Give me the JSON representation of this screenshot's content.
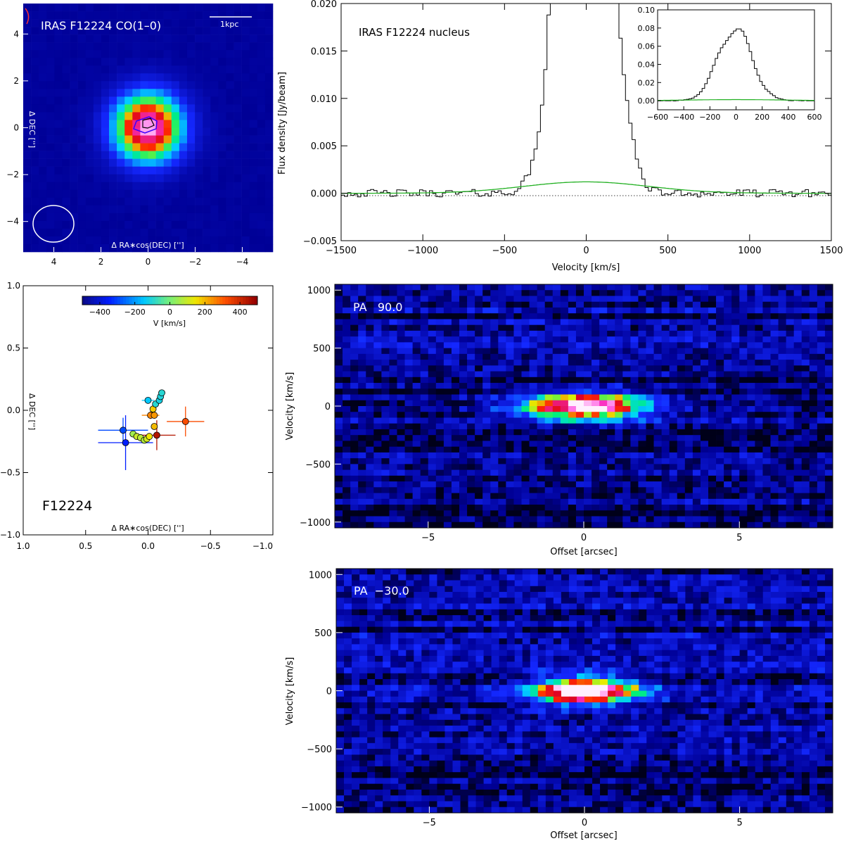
{
  "colors": {
    "spectrum_line": "#000000",
    "fit_line": "#22b022",
    "beam_ellipse": "#ffffff",
    "contour": "#3c00ff",
    "background": "#ffffff"
  },
  "chart_data": [
    {
      "id": "co_map",
      "type": "heatmap",
      "title": "IRAS F12224 CO(1–0)",
      "scale_bar_label": "1kpc",
      "xlabel": "Δ RA∗cos(DEC) ['']",
      "ylabel": "Δ DEC ['']",
      "xlim": [
        5.3,
        -5.3
      ],
      "ylim": [
        -5.3,
        5.3
      ],
      "xticks": [
        4,
        2,
        0,
        -2,
        -4
      ],
      "yticks": [
        -4,
        -2,
        0,
        2,
        4
      ],
      "peak_position": [
        0,
        0
      ],
      "beam": {
        "center": [
          3.9,
          -3.9
        ],
        "major": 1.6,
        "minor": 1.45,
        "shape": "ellipse"
      }
    },
    {
      "id": "spectrum",
      "type": "line",
      "label": "IRAS F12224 nucleus",
      "xlabel": "Velocity [km/s]",
      "ylabel": "Flux density [Jy/beam]",
      "xlim": [
        -1500,
        1500
      ],
      "ylim": [
        -0.005,
        0.02
      ],
      "xticks": [
        -1500,
        -1000,
        -500,
        0,
        500,
        1000,
        1500
      ],
      "yticks": [
        -0.005,
        0.0,
        0.005,
        0.01,
        0.015,
        0.02
      ],
      "ytick_labels": [
        "−0.005",
        "0.000",
        "0.005",
        "0.010",
        "0.015",
        "0.020"
      ],
      "series": [
        {
          "name": "observed",
          "style": "step",
          "peak": 0.08,
          "center": -20,
          "fwhm": 300,
          "noise": 0.0004
        },
        {
          "name": "broad_component_fit",
          "style": "line",
          "amplitude": 0.0012,
          "center": 0,
          "fwhm": 900
        }
      ],
      "zero_line": "dotted",
      "inset": {
        "xlim": [
          -600,
          600
        ],
        "ylim": [
          -0.01,
          0.1
        ],
        "xticks": [
          -600,
          -400,
          -200,
          0,
          200,
          400,
          600
        ],
        "xtick_labels": [
          "−600",
          "−400",
          "−200",
          "0",
          "200",
          "400",
          "600"
        ],
        "yticks": [
          0.0,
          0.02,
          0.04,
          0.06,
          0.08,
          0.1
        ],
        "ytick_labels": [
          "0.00",
          "0.02",
          "0.04",
          "0.06",
          "0.08",
          "0.10"
        ]
      }
    },
    {
      "id": "centroids",
      "type": "scatter",
      "label": "F12224",
      "xlabel": "Δ RA∗cos(DEC) ['']",
      "ylabel": "Δ DEC ['']",
      "xlim": [
        1.0,
        -1.0
      ],
      "ylim": [
        -1.0,
        1.0
      ],
      "xticks": [
        1.0,
        0.5,
        0.0,
        -0.5,
        -1.0
      ],
      "xtick_labels": [
        "1.0",
        "0.5",
        "0.0",
        "−0.5",
        "−1.0"
      ],
      "yticks": [
        -1.0,
        -0.5,
        0.0,
        0.5,
        1.0
      ],
      "ytick_labels": [
        "−1.0",
        "−0.5",
        "0.0",
        "0.5",
        "1.0"
      ],
      "colorbar": {
        "label": "V [km/s]",
        "range": [
          -500,
          500
        ],
        "ticks": [
          -400,
          -200,
          0,
          200,
          400
        ],
        "tick_labels": [
          "−400",
          "−200",
          "0",
          "200",
          "400"
        ]
      },
      "points": [
        {
          "x": 0.2,
          "y": -0.16,
          "v": -300,
          "xerr": 0.2,
          "yerr": 0.1
        },
        {
          "x": 0.18,
          "y": -0.26,
          "v": -350,
          "xerr": 0.22,
          "yerr": 0.22
        },
        {
          "x": 0.12,
          "y": -0.19,
          "v": 50,
          "xerr": 0.0,
          "yerr": 0.0
        },
        {
          "x": 0.09,
          "y": -0.21,
          "v": 100,
          "xerr": 0.0,
          "yerr": 0.0
        },
        {
          "x": 0.06,
          "y": -0.22,
          "v": 80,
          "xerr": 0.0,
          "yerr": 0.0
        },
        {
          "x": 0.03,
          "y": -0.24,
          "v": 70,
          "xerr": 0.0,
          "yerr": 0.0
        },
        {
          "x": 0.01,
          "y": -0.23,
          "v": 110,
          "xerr": 0.0,
          "yerr": 0.0
        },
        {
          "x": -0.01,
          "y": -0.21,
          "v": 150,
          "xerr": 0.0,
          "yerr": 0.0
        },
        {
          "x": -0.05,
          "y": -0.13,
          "v": 200,
          "xerr": 0.0,
          "yerr": 0.0
        },
        {
          "x": -0.07,
          "y": -0.2,
          "v": 450,
          "xerr": 0.15,
          "yerr": 0.12
        },
        {
          "x": -0.3,
          "y": -0.09,
          "v": 330,
          "xerr": 0.15,
          "yerr": 0.12
        },
        {
          "x": -0.02,
          "y": -0.04,
          "v": 260,
          "xerr": 0.07,
          "yerr": 0.03
        },
        {
          "x": -0.05,
          "y": -0.04,
          "v": 240,
          "xerr": 0.0,
          "yerr": 0.0
        },
        {
          "x": -0.04,
          "y": 0.01,
          "v": 180,
          "xerr": 0.0,
          "yerr": 0.0
        },
        {
          "x": 0.0,
          "y": 0.08,
          "v": -150,
          "xerr": 0.05,
          "yerr": 0.02
        },
        {
          "x": -0.06,
          "y": 0.05,
          "v": -100,
          "xerr": 0.0,
          "yerr": 0.0
        },
        {
          "x": -0.09,
          "y": 0.08,
          "v": -120,
          "xerr": 0.0,
          "yerr": 0.0
        },
        {
          "x": -0.1,
          "y": 0.11,
          "v": -110,
          "xerr": 0.0,
          "yerr": 0.0
        },
        {
          "x": -0.11,
          "y": 0.14,
          "v": -100,
          "xerr": 0.0,
          "yerr": 0.0
        }
      ]
    },
    {
      "id": "pv_pa90",
      "type": "heatmap",
      "label": "PA   90.0",
      "xlabel": "Offset [arcsec]",
      "ylabel": "Velocity [km/s]",
      "xlim": [
        -8,
        8
      ],
      "ylim": [
        -1050,
        1050
      ],
      "xticks": [
        -5,
        0,
        5
      ],
      "xtick_labels": [
        "−5",
        "0",
        "5"
      ],
      "yticks": [
        -1000,
        -500,
        0,
        500,
        1000
      ],
      "ytick_labels": [
        "−1000",
        "−500",
        "0",
        "500",
        "1000"
      ],
      "emission": {
        "center_offset": 0,
        "center_velocity": 0,
        "offset_sigma": 1.4,
        "velocity_sigma": 75
      }
    },
    {
      "id": "pv_pa_minus30",
      "type": "heatmap",
      "label": "PA  −30.0",
      "xlabel": "Offset [arcsec]",
      "ylabel": "Velocity [km/s]",
      "xlim": [
        -8,
        8
      ],
      "ylim": [
        -1050,
        1050
      ],
      "xticks": [
        -5,
        0,
        5
      ],
      "xtick_labels": [
        "−5",
        "0",
        "5"
      ],
      "yticks": [
        -1000,
        -500,
        0,
        500,
        1000
      ],
      "ytick_labels": [
        "−1000",
        "−500",
        "0",
        "500",
        "1000"
      ],
      "emission": {
        "center_offset": 0,
        "center_velocity": 0,
        "offset_sigma": 1.15,
        "velocity_sigma": 80
      }
    }
  ]
}
